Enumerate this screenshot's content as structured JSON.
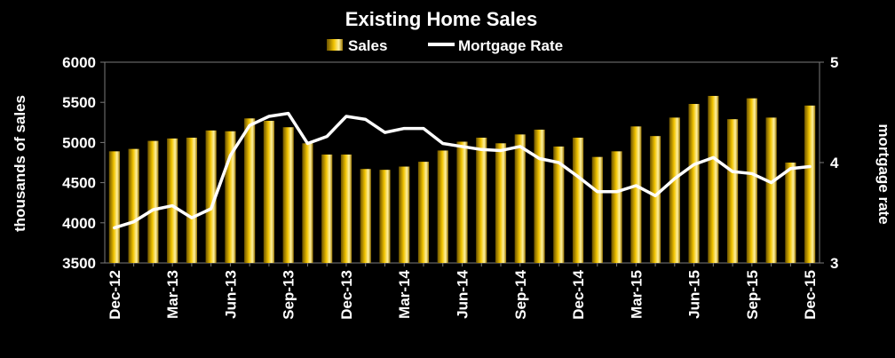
{
  "chart_data": {
    "type": "bar",
    "title": "Existing Home Sales",
    "legend_position": "top-center",
    "grid": false,
    "categories": [
      "Dec-12",
      "Jan-13",
      "Feb-13",
      "Mar-13",
      "Apr-13",
      "May-13",
      "Jun-13",
      "Jul-13",
      "Aug-13",
      "Sep-13",
      "Oct-13",
      "Nov-13",
      "Dec-13",
      "Jan-14",
      "Feb-14",
      "Mar-14",
      "Apr-14",
      "May-14",
      "Jun-14",
      "Jul-14",
      "Aug-14",
      "Sep-14",
      "Oct-14",
      "Nov-14",
      "Dec-14",
      "Jan-15",
      "Feb-15",
      "Mar-15",
      "Apr-15",
      "May-15",
      "Jun-15",
      "Jul-15",
      "Aug-15",
      "Sep-15",
      "Oct-15",
      "Nov-15",
      "Dec-15"
    ],
    "x_tick_labels": [
      "Dec-12",
      "Mar-13",
      "Jun-13",
      "Sep-13",
      "Dec-13",
      "Mar-14",
      "Jun-14",
      "Sep-14",
      "Dec-14",
      "Mar-15",
      "Jun-15",
      "Sep-15",
      "Dec-15"
    ],
    "series": [
      {
        "name": "Sales",
        "type": "bar",
        "axis": "left",
        "color": "#d4a900",
        "values": [
          4890,
          4920,
          5020,
          5050,
          5060,
          5150,
          5140,
          5300,
          5270,
          5190,
          4990,
          4850,
          4850,
          4670,
          4660,
          4700,
          4760,
          4900,
          5010,
          5060,
          4990,
          5100,
          5160,
          4950,
          5060,
          4820,
          4890,
          5200,
          5080,
          5310,
          5480,
          5580,
          5290,
          5550,
          5310,
          4750,
          5460
        ]
      },
      {
        "name": "Mortgage Rate",
        "type": "line",
        "axis": "right",
        "color": "#ffffff",
        "values": [
          3.35,
          3.41,
          3.53,
          3.57,
          3.45,
          3.54,
          4.07,
          4.37,
          4.46,
          4.49,
          4.19,
          4.26,
          4.46,
          4.43,
          4.3,
          4.34,
          4.34,
          4.19,
          4.16,
          4.13,
          4.12,
          4.16,
          4.04,
          4.0,
          3.86,
          3.71,
          3.71,
          3.77,
          3.67,
          3.84,
          3.98,
          4.05,
          3.91,
          3.89,
          3.8,
          3.94,
          3.96
        ]
      }
    ],
    "ylabel": "thousands of sales",
    "ylim": [
      3500,
      6000
    ],
    "yticks": [
      3500,
      4000,
      4500,
      5000,
      5500,
      6000
    ],
    "y2label": "mortgage rate",
    "y2lim": [
      3,
      5
    ],
    "y2ticks": [
      3,
      4,
      5
    ]
  }
}
